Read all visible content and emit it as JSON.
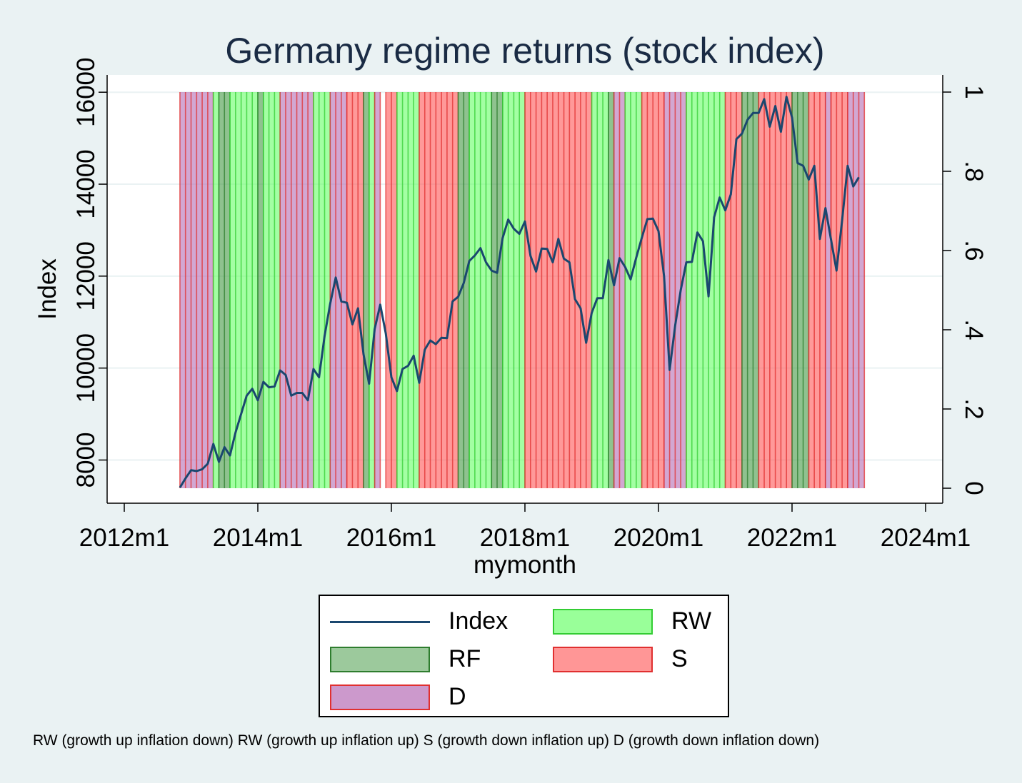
{
  "chart_data": {
    "type": "area",
    "title": "Germany regime returns (stock index)",
    "xlabel": "mymonth",
    "ylabel": "Index",
    "x_ticks": [
      "2012m1",
      "2014m1",
      "2016m1",
      "2018m1",
      "2020m1",
      "2022m1",
      "2024m1"
    ],
    "y_ticks": [
      8000,
      10000,
      12000,
      14000,
      16000
    ],
    "y2_ticks": [
      "0",
      ".2",
      ".4",
      ".6",
      ".8",
      "1"
    ],
    "xlim": [
      "2012-01",
      "2024-01"
    ],
    "ylim": [
      7400,
      16400
    ],
    "y2lim": [
      0,
      1
    ],
    "grid": true,
    "legend": [
      {
        "name": "Index",
        "kind": "line",
        "color": "#1a476f"
      },
      {
        "name": "RW",
        "kind": "area",
        "color": "#66ff66",
        "border": "#33cc33"
      },
      {
        "name": "RF",
        "kind": "area",
        "color": "#449944",
        "border": "#2e7d2e"
      },
      {
        "name": "S",
        "kind": "area",
        "color": "#ff5555",
        "border": "#e03030"
      },
      {
        "name": "D",
        "kind": "area",
        "color": "#b46cb4",
        "border": "#e03030"
      }
    ],
    "note": "RW (growth up inflation down) RW (growth up inflation up) S (growth down inflation up) D (growth down inflation down)",
    "regimes": [
      {
        "start": "2012-11",
        "end": "2013-05",
        "regime": "D"
      },
      {
        "start": "2013-05",
        "end": "2013-06",
        "regime": "RW"
      },
      {
        "start": "2013-06",
        "end": "2013-08",
        "regime": "RF"
      },
      {
        "start": "2013-08",
        "end": "2014-01",
        "regime": "RW"
      },
      {
        "start": "2014-01",
        "end": "2014-02",
        "regime": "RF"
      },
      {
        "start": "2014-02",
        "end": "2014-05",
        "regime": "RW"
      },
      {
        "start": "2014-05",
        "end": "2014-11",
        "regime": "D"
      },
      {
        "start": "2014-11",
        "end": "2015-02",
        "regime": "RW"
      },
      {
        "start": "2015-02",
        "end": "2015-05",
        "regime": "D"
      },
      {
        "start": "2015-05",
        "end": "2015-08",
        "regime": "S"
      },
      {
        "start": "2015-08",
        "end": "2015-09",
        "regime": "RF"
      },
      {
        "start": "2015-09",
        "end": "2015-10",
        "regime": "RW"
      },
      {
        "start": "2015-10",
        "end": "2015-11",
        "regime": "D"
      },
      {
        "start": "2015-12",
        "end": "2016-02",
        "regime": "S"
      },
      {
        "start": "2016-02",
        "end": "2016-06",
        "regime": "RW"
      },
      {
        "start": "2016-06",
        "end": "2017-01",
        "regime": "S"
      },
      {
        "start": "2017-01",
        "end": "2017-03",
        "regime": "RF"
      },
      {
        "start": "2017-03",
        "end": "2017-07",
        "regime": "RW"
      },
      {
        "start": "2017-07",
        "end": "2017-09",
        "regime": "RF"
      },
      {
        "start": "2017-09",
        "end": "2018-01",
        "regime": "RW"
      },
      {
        "start": "2018-01",
        "end": "2019-01",
        "regime": "S"
      },
      {
        "start": "2019-01",
        "end": "2019-04",
        "regime": "RW"
      },
      {
        "start": "2019-04",
        "end": "2019-05",
        "regime": "RF"
      },
      {
        "start": "2019-05",
        "end": "2019-07",
        "regime": "D"
      },
      {
        "start": "2019-07",
        "end": "2019-10",
        "regime": "RW"
      },
      {
        "start": "2019-10",
        "end": "2020-02",
        "regime": "S"
      },
      {
        "start": "2020-02",
        "end": "2020-06",
        "regime": "D"
      },
      {
        "start": "2020-06",
        "end": "2021-01",
        "regime": "RW"
      },
      {
        "start": "2021-01",
        "end": "2021-04",
        "regime": "S"
      },
      {
        "start": "2021-04",
        "end": "2021-07",
        "regime": "RF"
      },
      {
        "start": "2021-07",
        "end": "2022-01",
        "regime": "S"
      },
      {
        "start": "2022-01",
        "end": "2022-04",
        "regime": "RF"
      },
      {
        "start": "2022-04",
        "end": "2022-07",
        "regime": "S"
      },
      {
        "start": "2022-07",
        "end": "2022-08",
        "regime": "D"
      },
      {
        "start": "2022-08",
        "end": "2022-11",
        "regime": "S"
      },
      {
        "start": "2022-11",
        "end": "2023-02",
        "regime": "D"
      }
    ],
    "series": [
      {
        "name": "Index",
        "x": [
          "2012-11",
          "2012-12",
          "2013-01",
          "2013-02",
          "2013-03",
          "2013-04",
          "2013-05",
          "2013-06",
          "2013-07",
          "2013-08",
          "2013-09",
          "2013-10",
          "2013-11",
          "2013-12",
          "2014-01",
          "2014-02",
          "2014-03",
          "2014-04",
          "2014-05",
          "2014-06",
          "2014-07",
          "2014-08",
          "2014-09",
          "2014-10",
          "2014-11",
          "2014-12",
          "2015-01",
          "2015-02",
          "2015-03",
          "2015-04",
          "2015-05",
          "2015-06",
          "2015-07",
          "2015-08",
          "2015-09",
          "2015-10",
          "2015-11",
          "2015-12",
          "2016-01",
          "2016-02",
          "2016-03",
          "2016-04",
          "2016-05",
          "2016-06",
          "2016-07",
          "2016-08",
          "2016-09",
          "2016-10",
          "2016-11",
          "2016-12",
          "2017-01",
          "2017-02",
          "2017-03",
          "2017-04",
          "2017-05",
          "2017-06",
          "2017-07",
          "2017-08",
          "2017-09",
          "2017-10",
          "2017-11",
          "2017-12",
          "2018-01",
          "2018-02",
          "2018-03",
          "2018-04",
          "2018-05",
          "2018-06",
          "2018-07",
          "2018-08",
          "2018-09",
          "2018-10",
          "2018-11",
          "2018-12",
          "2019-01",
          "2019-02",
          "2019-03",
          "2019-04",
          "2019-05",
          "2019-06",
          "2019-07",
          "2019-08",
          "2019-09",
          "2019-10",
          "2019-11",
          "2019-12",
          "2020-01",
          "2020-02",
          "2020-03",
          "2020-04",
          "2020-05",
          "2020-06",
          "2020-07",
          "2020-08",
          "2020-09",
          "2020-10",
          "2020-11",
          "2020-12",
          "2021-01",
          "2021-02",
          "2021-03",
          "2021-04",
          "2021-05",
          "2021-06",
          "2021-07",
          "2021-08",
          "2021-09",
          "2021-10",
          "2021-11",
          "2021-12",
          "2022-01",
          "2022-02",
          "2022-03",
          "2022-04",
          "2022-05",
          "2022-06",
          "2022-07",
          "2022-08",
          "2022-09",
          "2022-10",
          "2022-11",
          "2022-12",
          "2023-01"
        ],
        "values": [
          7400,
          7600,
          7780,
          7760,
          7800,
          7920,
          8350,
          7960,
          8280,
          8100,
          8600,
          9000,
          9400,
          9550,
          9300,
          9700,
          9580,
          9600,
          9950,
          9850,
          9400,
          9460,
          9460,
          9300,
          9980,
          9800,
          10700,
          11400,
          11970,
          11450,
          11420,
          10950,
          11300,
          10300,
          9660,
          10850,
          11380,
          10750,
          9800,
          9500,
          9980,
          10050,
          10270,
          9680,
          10400,
          10600,
          10520,
          10660,
          10650,
          11450,
          11550,
          11850,
          12330,
          12450,
          12610,
          12300,
          12120,
          12070,
          12830,
          13230,
          13030,
          12920,
          13190,
          12440,
          12100,
          12600,
          12590,
          12300,
          12810,
          12380,
          12300,
          11500,
          11300,
          10550,
          11200,
          11520,
          11520,
          12350,
          11800,
          12390,
          12200,
          11930,
          12400,
          12830,
          13240,
          13250,
          12980,
          12000,
          9960,
          10930,
          11700,
          12300,
          12310,
          12950,
          12760,
          11560,
          13280,
          13710,
          13430,
          13780,
          14980,
          15100,
          15400,
          15550,
          15550,
          15850,
          15250,
          15700,
          15140,
          15900,
          15450,
          14460,
          14400,
          14100,
          14400,
          12810,
          13480,
          12800,
          12120,
          13210,
          14400,
          13950,
          14150
        ]
      }
    ]
  }
}
